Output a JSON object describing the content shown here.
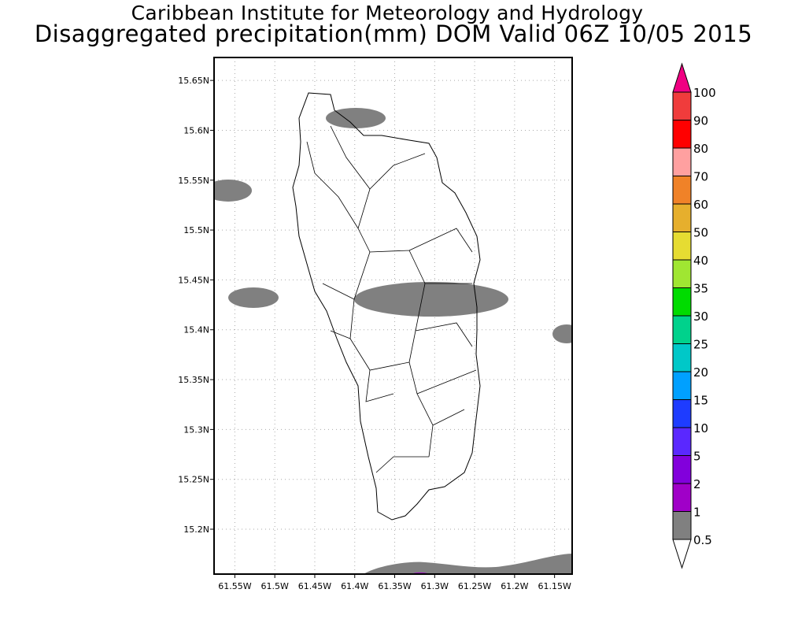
{
  "header": {
    "title": "Caribbean Institute for Meteorology and Hydrology",
    "subtitle": "Disaggregated precipitation(mm) DOM Valid 06Z 10/05 2015"
  },
  "map": {
    "region": "Dominica",
    "lon_range": [
      -61.576,
      -61.128
    ],
    "lat_range": [
      15.155,
      15.673
    ],
    "lon_ticks": [
      {
        "value": -61.55,
        "label": "61.55W"
      },
      {
        "value": -61.5,
        "label": "61.5W"
      },
      {
        "value": -61.45,
        "label": "61.45W"
      },
      {
        "value": -61.4,
        "label": "61.4W"
      },
      {
        "value": -61.35,
        "label": "61.35W"
      },
      {
        "value": -61.3,
        "label": "61.3W"
      },
      {
        "value": -61.25,
        "label": "61.25W"
      },
      {
        "value": -61.2,
        "label": "61.2W"
      },
      {
        "value": -61.15,
        "label": "61.15W"
      }
    ],
    "lat_ticks": [
      {
        "value": 15.65,
        "label": "15.65N"
      },
      {
        "value": 15.6,
        "label": "15.6N"
      },
      {
        "value": 15.55,
        "label": "15.55N"
      },
      {
        "value": 15.5,
        "label": "15.5N"
      },
      {
        "value": 15.45,
        "label": "15.45N"
      },
      {
        "value": 15.4,
        "label": "15.4N"
      },
      {
        "value": 15.35,
        "label": "15.35N"
      },
      {
        "value": 15.3,
        "label": "15.3N"
      },
      {
        "value": 15.25,
        "label": "15.25N"
      },
      {
        "value": 15.2,
        "label": "15.2N"
      }
    ],
    "precip_color": "#808080"
  },
  "colorbar": {
    "labels": [
      "100",
      "90",
      "80",
      "70",
      "60",
      "50",
      "40",
      "35",
      "30",
      "25",
      "20",
      "15",
      "10",
      "5",
      "2",
      "1",
      "0.5"
    ],
    "top_arrow_color": "#f00082",
    "colors": [
      "#f03c3c",
      "#ff0000",
      "#ffa0a0",
      "#f08228",
      "#e6af2d",
      "#e6dc32",
      "#a0e632",
      "#00dc00",
      "#00d28c",
      "#00c8c8",
      "#00a0ff",
      "#1e3cff",
      "#5a28ff",
      "#8200dc",
      "#a000c8",
      "#808080"
    ]
  }
}
